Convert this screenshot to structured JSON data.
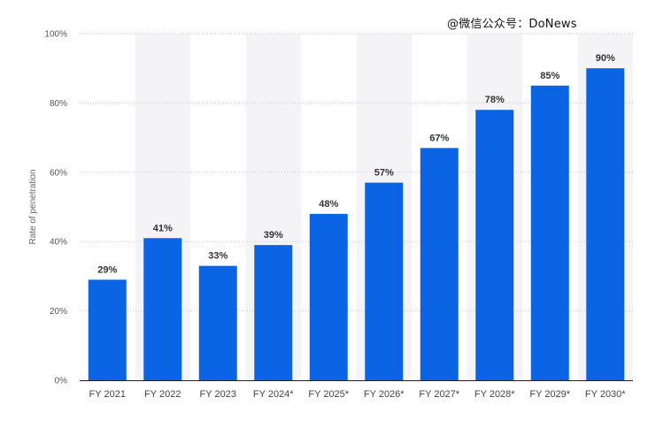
{
  "watermark": "@微信公众号：DoNews",
  "chart_data": {
    "type": "bar",
    "title": "",
    "xlabel": "",
    "ylabel": "Rate of penetration",
    "ylim": [
      0,
      100
    ],
    "yticks": [
      "0%",
      "20%",
      "40%",
      "60%",
      "80%",
      "100%"
    ],
    "ytick_values": [
      0,
      20,
      40,
      60,
      80,
      100
    ],
    "categories": [
      "FY 2021",
      "FY 2022",
      "FY 2023",
      "FY 2024*",
      "FY 2025*",
      "FY 2026*",
      "FY 2027*",
      "FY 2028*",
      "FY 2029*",
      "FY 2030*"
    ],
    "values": [
      29,
      41,
      33,
      39,
      48,
      57,
      67,
      78,
      85,
      90
    ],
    "data_labels": [
      "29%",
      "41%",
      "33%",
      "39%",
      "48%",
      "57%",
      "67%",
      "78%",
      "85%",
      "90%"
    ],
    "grid": true,
    "bar_color": "#0b64e3",
    "band_color": "#f4f4f6",
    "grid_color": "#c8c8c8"
  }
}
